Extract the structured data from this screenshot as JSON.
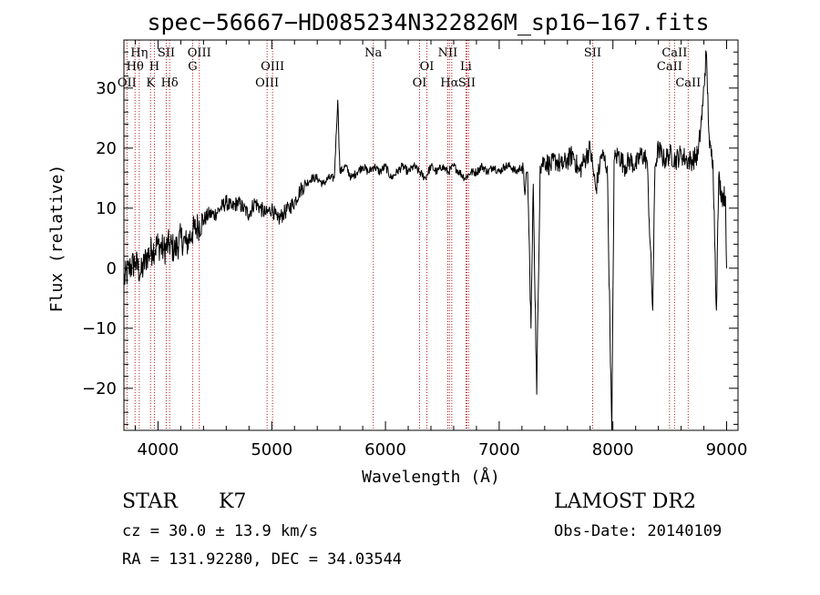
{
  "chart_data": {
    "type": "line",
    "title": "spec−56667−HD085234N322826M_sp16−167.fits",
    "xlabel": "Wavelength (Å)",
    "ylabel": "Flux (relative)",
    "xlim": [
      3700,
      9100
    ],
    "ylim": [
      -27,
      38
    ],
    "xticks": [
      {
        "value": 4000,
        "label": "4000"
      },
      {
        "value": 5000,
        "label": "5000"
      },
      {
        "value": 6000,
        "label": "6000"
      },
      {
        "value": 7000,
        "label": "7000"
      },
      {
        "value": 8000,
        "label": "8000"
      },
      {
        "value": 9000,
        "label": "9000"
      }
    ],
    "yticks": [
      {
        "value": 30,
        "label": "30"
      },
      {
        "value": 20,
        "label": "20"
      },
      {
        "value": 10,
        "label": "10"
      },
      {
        "value": 0,
        "label": "0"
      },
      {
        "value": -10,
        "label": "−10"
      },
      {
        "value": -20,
        "label": "−20"
      }
    ],
    "spectral_lines": [
      {
        "wavelength": 3727,
        "label": "OII",
        "row": 2
      },
      {
        "wavelength": 3798,
        "label": "Hθ",
        "row": 1
      },
      {
        "wavelength": 3835,
        "label": "Hη",
        "row": 0
      },
      {
        "wavelength": 3934,
        "label": "K",
        "row": 2
      },
      {
        "wavelength": 3968,
        "label": "H",
        "row": 1
      },
      {
        "wavelength": 4072,
        "label": "SII",
        "row": 0
      },
      {
        "wavelength": 4102,
        "label": "Hδ",
        "row": 2
      },
      {
        "wavelength": 4304,
        "label": "G",
        "row": 1
      },
      {
        "wavelength": 4363,
        "label": "OIII",
        "row": 0
      },
      {
        "wavelength": 4959,
        "label": "OIII",
        "row": 2
      },
      {
        "wavelength": 5007,
        "label": "OIII",
        "row": 1
      },
      {
        "wavelength": 5893,
        "label": "Na",
        "row": 0
      },
      {
        "wavelength": 6300,
        "label": "OI",
        "row": 2
      },
      {
        "wavelength": 6364,
        "label": "OI",
        "row": 1
      },
      {
        "wavelength": 6548,
        "label": "NII",
        "row": 0
      },
      {
        "wavelength": 6563,
        "label": "Hα",
        "row": 2
      },
      {
        "wavelength": 6583,
        "label": "NII",
        "row": -1
      },
      {
        "wavelength": 6708,
        "label": "Li",
        "row": 1
      },
      {
        "wavelength": 6716,
        "label": "SII",
        "row": 2
      },
      {
        "wavelength": 6731,
        "label": "",
        "row": -1
      },
      {
        "wavelength": 7822,
        "label": "SII",
        "row": 0
      },
      {
        "wavelength": 8498,
        "label": "CaII",
        "row": 1
      },
      {
        "wavelength": 8542,
        "label": "CaII",
        "row": 0
      },
      {
        "wavelength": 8662,
        "label": "CaII",
        "row": 2
      }
    ],
    "series": [
      {
        "x": [
          3700,
          3750,
          3800,
          3850,
          3900,
          3950,
          4000,
          4050,
          4100,
          4150,
          4200,
          4250,
          4300,
          4350,
          4400,
          4450,
          4500,
          4550,
          4600,
          4650,
          4700,
          4750,
          4800,
          4850,
          4900,
          4950,
          5000,
          5050,
          5100,
          5150,
          5200,
          5250,
          5300,
          5350,
          5400,
          5450,
          5500,
          5550,
          5580,
          5600,
          5650,
          5700,
          5750,
          5800,
          5850,
          5900,
          5950,
          6000,
          6050,
          6100,
          6150,
          6200,
          6250,
          6300,
          6350,
          6400,
          6450,
          6500,
          6550,
          6600,
          6650,
          6700,
          6750,
          6800,
          6850,
          6900,
          6950,
          7000,
          7050,
          7100,
          7150,
          7200,
          7230,
          7250,
          7280,
          7300,
          7330,
          7360,
          7400,
          7450,
          7500,
          7550,
          7600,
          7650,
          7700,
          7750,
          7800,
          7850,
          7900,
          7950,
          7990,
          8010,
          8050,
          8100,
          8150,
          8200,
          8250,
          8300,
          8350,
          8370,
          8400,
          8450,
          8500,
          8550,
          8600,
          8650,
          8700,
          8750,
          8790,
          8820,
          8850,
          8880,
          8910,
          8930,
          8960,
          8990,
          9000
        ],
        "y": [
          -2,
          0,
          1,
          -1,
          2,
          3,
          4,
          3,
          4,
          3,
          5,
          4,
          6,
          7,
          8,
          9,
          9,
          10,
          11,
          10,
          11,
          10,
          9,
          11,
          10,
          9,
          10,
          8,
          9,
          10,
          11,
          13,
          14,
          15,
          15,
          14,
          15,
          15,
          28,
          16,
          17,
          15,
          16,
          17,
          16,
          17,
          16,
          17,
          15,
          16,
          17,
          16,
          17,
          16,
          15,
          17,
          16,
          17,
          16,
          17,
          16,
          15,
          16,
          16,
          17,
          16,
          17,
          16,
          17,
          17,
          16,
          17,
          13,
          16,
          -10,
          14,
          -21,
          17,
          18,
          17,
          18,
          17,
          18,
          19,
          16,
          18,
          20,
          13,
          19,
          17,
          -28,
          18,
          19,
          17,
          18,
          17,
          19,
          18,
          -7,
          17,
          20,
          18,
          19,
          18,
          19,
          18,
          18,
          19,
          27,
          36,
          20,
          18,
          -7,
          15,
          12,
          12,
          0
        ]
      }
    ]
  },
  "info": {
    "class": "STAR",
    "subclass": "K7",
    "cz": "cz = 30.0 ± 13.9 km/s",
    "radec": "RA = 131.92280, DEC =  34.03544",
    "survey": "LAMOST DR2",
    "obsdate": "Obs-Date: 20140109"
  }
}
